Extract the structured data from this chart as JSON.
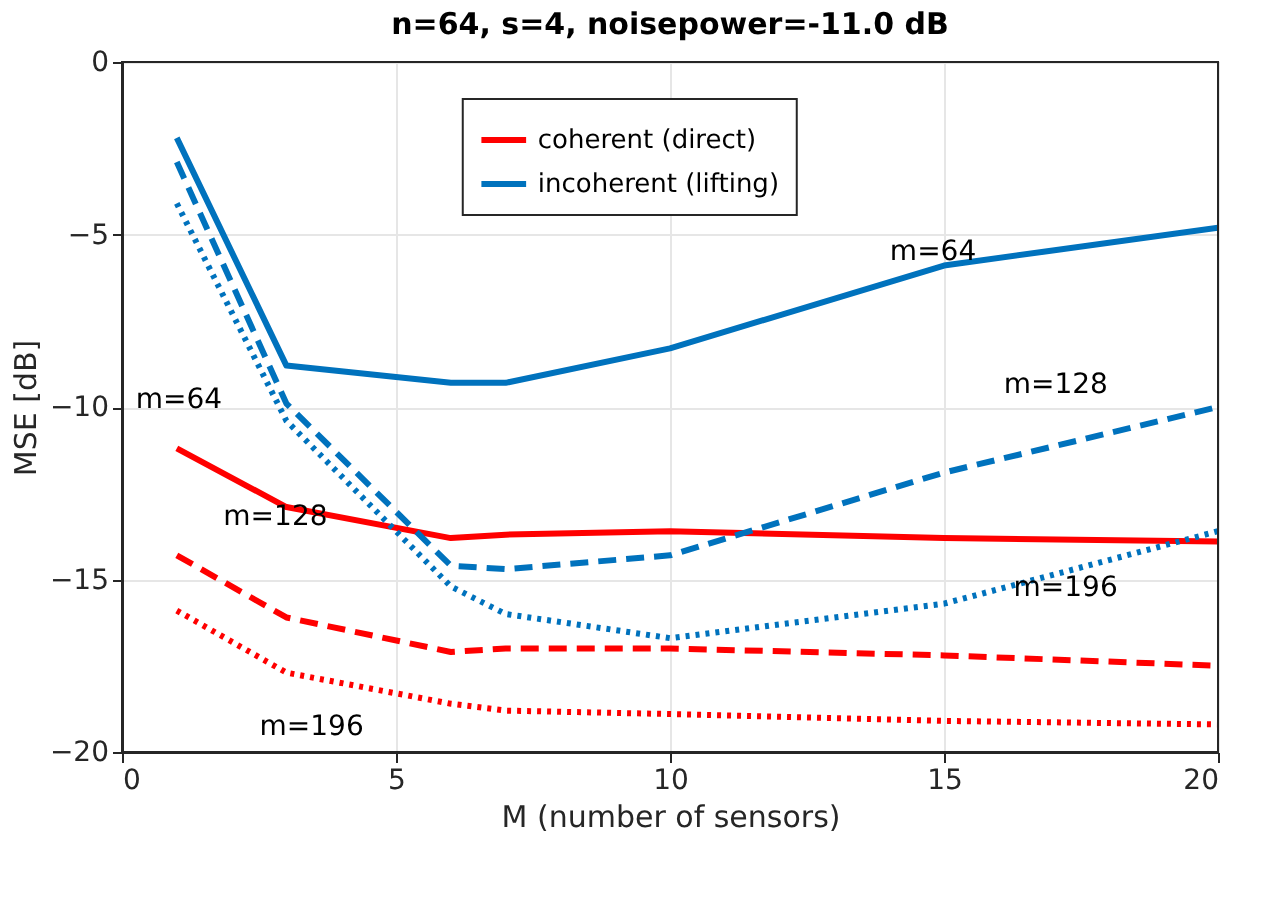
{
  "chart_data": {
    "type": "line",
    "title": "n=64, s=4, noisepower=-11.0 dB",
    "xlabel": "M (number of sensors)",
    "ylabel": "MSE [dB]",
    "x": [
      1,
      3,
      6,
      7,
      10,
      15,
      20
    ],
    "series": [
      {
        "name": "coherent (direct)",
        "color": "#ff0000",
        "line_style": "solid",
        "values": [
          -11.2,
          -12.9,
          -13.8,
          -13.7,
          -13.6,
          -13.8,
          -13.9
        ]
      },
      {
        "name": "incoherent (lifting)",
        "color": "#0072bd",
        "line_style": "solid",
        "values": [
          -2.2,
          -8.8,
          -9.3,
          -9.3,
          -8.3,
          -5.9,
          -4.8
        ]
      },
      {
        "color": "#0072bd",
        "line_style": "dashed",
        "values": [
          -2.9,
          -9.9,
          -14.6,
          -14.7,
          -14.3,
          -11.9,
          -10.0
        ]
      },
      {
        "color": "#0072bd",
        "line_style": "dotted",
        "values": [
          -4.1,
          -10.4,
          -15.2,
          -16.0,
          -16.7,
          -15.7,
          -13.6
        ]
      },
      {
        "color": "#ff0000",
        "line_style": "dashed",
        "values": [
          -14.3,
          -16.1,
          -17.1,
          -17.0,
          -17.0,
          -17.2,
          -17.5
        ]
      },
      {
        "color": "#ff0000",
        "line_style": "dotted",
        "values": [
          -15.9,
          -17.7,
          -18.6,
          -18.8,
          -18.9,
          -19.1,
          -19.2
        ]
      }
    ],
    "xlim": [
      0,
      20
    ],
    "xticks": [
      0,
      5,
      10,
      15,
      20
    ],
    "ylim": [
      -20,
      0
    ],
    "yticks": [
      -20,
      -15,
      -10,
      -5,
      0
    ],
    "grid": true,
    "legend": "top",
    "annotations": [
      "m=64",
      "m=128",
      "m=196",
      "m=64",
      "m=128",
      "m=196"
    ]
  }
}
